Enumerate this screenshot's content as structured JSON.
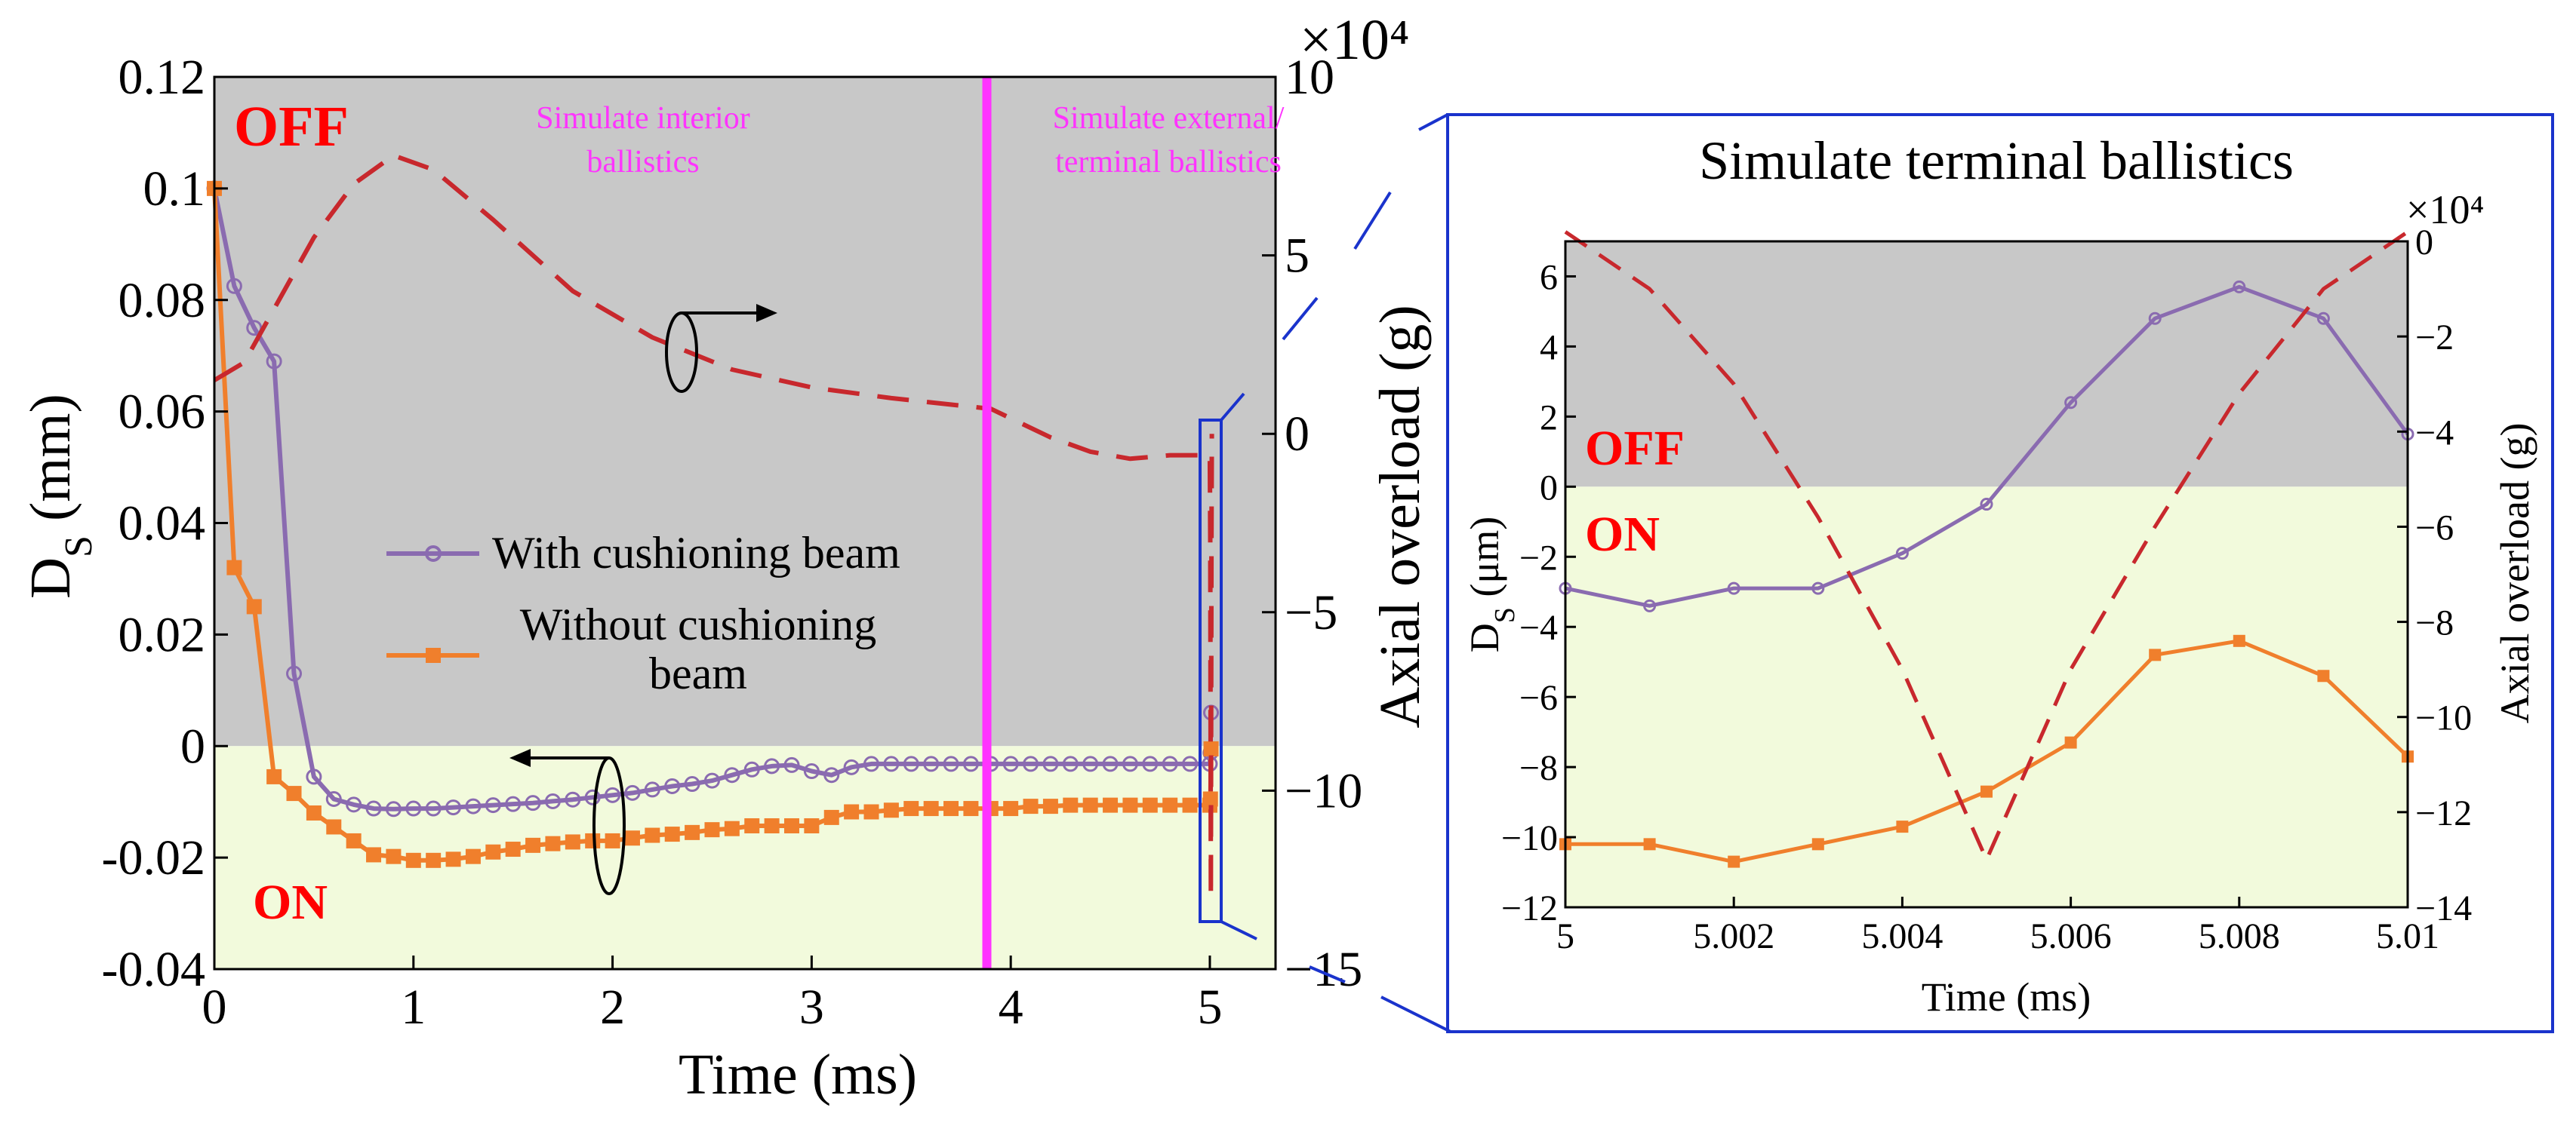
{
  "colors": {
    "off_region": "#c8c8c8",
    "on_region": "#f2fadc",
    "with_beam": "#8a6bb0",
    "without_beam": "#f07f2c",
    "overload": "#c8282d",
    "marker_line": "#ff33ff",
    "zone_text": "#ff0000",
    "inset_frame": "#1a33cc"
  },
  "chart_data": [
    {
      "type": "line",
      "name": "main",
      "xlabel": "Time (ms)",
      "ylabel_left": "D",
      "ylabel_left_sub": "S",
      "ylabel_left_unit": " (mm)",
      "ylabel_right": "Axial overload (g)",
      "right_exponent": "×10⁴",
      "xlim": [
        0,
        5.33
      ],
      "ylim_left": [
        -0.04,
        0.12
      ],
      "ylim_right": [
        -15,
        10
      ],
      "x_ticks": [
        "0",
        "1",
        "2",
        "3",
        "4",
        "5"
      ],
      "y_left_ticks": [
        "0.12",
        "0.1",
        "0.08",
        "0.06",
        "0.04",
        "0.02",
        "0",
        "-0.02",
        "-0.04"
      ],
      "y_right_ticks": [
        "10",
        "5",
        "0",
        "−5",
        "−10",
        "−15"
      ],
      "off_label": "OFF",
      "on_label": "ON",
      "note_interior": [
        "Simulate interior",
        "ballistics"
      ],
      "note_external": [
        "Simulate external/",
        "terminal ballistics"
      ],
      "divider_x": 3.88,
      "legend": {
        "with_label": "With cushioning beam",
        "without_label_line1": "Without cushioning",
        "without_label_line2": "beam"
      },
      "series": [
        {
          "name": "With cushioning beam",
          "axis": "left",
          "marker": "circle",
          "x": [
            0,
            0.1,
            0.2,
            0.3,
            0.4,
            0.5,
            0.6,
            0.7,
            0.8,
            0.9,
            1.0,
            1.1,
            1.2,
            1.3,
            1.4,
            1.5,
            1.6,
            1.7,
            1.8,
            1.9,
            2.0,
            2.1,
            2.2,
            2.3,
            2.4,
            2.5,
            2.6,
            2.7,
            2.8,
            2.9,
            3.0,
            3.1,
            3.2,
            3.3,
            3.4,
            3.5,
            3.6,
            3.7,
            3.8,
            3.9,
            4.0,
            4.1,
            4.2,
            4.3,
            4.4,
            4.5,
            4.6,
            4.7,
            4.8,
            4.9,
            5.0,
            5.003,
            5.006
          ],
          "y": [
            0.1,
            0.0825,
            0.075,
            0.069,
            0.013,
            -0.0055,
            -0.0095,
            -0.0105,
            -0.0112,
            -0.0113,
            -0.0112,
            -0.0112,
            -0.011,
            -0.0108,
            -0.0106,
            -0.0104,
            -0.0102,
            -0.0099,
            -0.0096,
            -0.0092,
            -0.0088,
            -0.0084,
            -0.0078,
            -0.0072,
            -0.0068,
            -0.0062,
            -0.0052,
            -0.0042,
            -0.0036,
            -0.0034,
            -0.0045,
            -0.0052,
            -0.0038,
            -0.0032,
            -0.0032,
            -0.0032,
            -0.0032,
            -0.0032,
            -0.0032,
            -0.0032,
            -0.0032,
            -0.0032,
            -0.0032,
            -0.0032,
            -0.0032,
            -0.0032,
            -0.0032,
            -0.0032,
            -0.0032,
            -0.0032,
            -0.0032,
            -0.0012,
            0.006
          ]
        },
        {
          "name": "Without cushioning beam",
          "axis": "left",
          "marker": "square",
          "x": [
            0,
            0.1,
            0.2,
            0.3,
            0.4,
            0.5,
            0.6,
            0.7,
            0.8,
            0.9,
            1.0,
            1.1,
            1.2,
            1.3,
            1.4,
            1.5,
            1.6,
            1.7,
            1.8,
            1.9,
            2.0,
            2.1,
            2.2,
            2.3,
            2.4,
            2.5,
            2.6,
            2.7,
            2.8,
            2.9,
            3.0,
            3.1,
            3.2,
            3.3,
            3.4,
            3.5,
            3.6,
            3.7,
            3.8,
            3.9,
            4.0,
            4.1,
            4.2,
            4.3,
            4.4,
            4.5,
            4.6,
            4.7,
            4.8,
            4.9,
            5.0,
            5.003,
            5.006
          ],
          "y": [
            0.1,
            0.032,
            0.025,
            -0.0055,
            -0.0085,
            -0.012,
            -0.0145,
            -0.017,
            -0.0195,
            -0.0198,
            -0.0205,
            -0.0205,
            -0.0203,
            -0.0198,
            -0.019,
            -0.0185,
            -0.0178,
            -0.0175,
            -0.0172,
            -0.017,
            -0.017,
            -0.0165,
            -0.016,
            -0.0158,
            -0.0155,
            -0.015,
            -0.0148,
            -0.0143,
            -0.0143,
            -0.0143,
            -0.0143,
            -0.0128,
            -0.0118,
            -0.0118,
            -0.0115,
            -0.0112,
            -0.0112,
            -0.0112,
            -0.0112,
            -0.0112,
            -0.0112,
            -0.0108,
            -0.0108,
            -0.0106,
            -0.0106,
            -0.0106,
            -0.0106,
            -0.0106,
            -0.0106,
            -0.0106,
            -0.0106,
            -0.0095,
            -0.0005
          ]
        },
        {
          "name": "Axial overload",
          "axis": "right",
          "style": "dashed",
          "x": [
            0,
            0.15,
            0.3,
            0.5,
            0.7,
            0.9,
            1.1,
            1.4,
            1.8,
            2.2,
            2.6,
            3.0,
            3.4,
            3.9,
            4.2,
            4.4,
            4.6,
            4.8,
            5.0,
            5.002,
            5.005,
            5.008,
            5.01
          ],
          "y": [
            1.5,
            2.0,
            3.5,
            5.5,
            7.0,
            7.8,
            7.4,
            6.0,
            4.0,
            2.7,
            1.8,
            1.3,
            1.0,
            0.7,
            -0.1,
            -0.5,
            -0.7,
            -0.6,
            -0.6,
            -3.0,
            -13.0,
            -3.0,
            0.0
          ]
        }
      ]
    },
    {
      "type": "line",
      "name": "inset",
      "title": "Simulate terminal ballistics",
      "xlabel": "Time (ms)",
      "ylabel_left": "D",
      "ylabel_left_sub": "S",
      "ylabel_left_unit": " (μm)",
      "ylabel_right": "Axial overload (g)",
      "right_exponent": "×10⁴",
      "xlim": [
        5,
        5.01
      ],
      "ylim_left": [
        -12,
        7
      ],
      "ylim_right": [
        -14,
        0
      ],
      "x_ticks": [
        "5",
        "5.002",
        "5.004",
        "5.006",
        "5.008",
        "5.01"
      ],
      "y_left_ticks": [
        "6",
        "4",
        "2",
        "0",
        "−2",
        "−4",
        "−6",
        "−8",
        "−10",
        "−12"
      ],
      "y_right_ticks": [
        "0",
        "−2",
        "−4",
        "−6",
        "−8",
        "−10",
        "−12",
        "−14"
      ],
      "off_label": "OFF",
      "on_label": "ON",
      "series": [
        {
          "name": "With cushioning beam",
          "axis": "left",
          "marker": "circle",
          "x": [
            5.0,
            5.001,
            5.002,
            5.003,
            5.004,
            5.005,
            5.006,
            5.007,
            5.008,
            5.009,
            5.01
          ],
          "y": [
            -2.9,
            -3.4,
            -2.9,
            -2.9,
            -1.9,
            -0.5,
            2.4,
            4.8,
            5.7,
            4.8,
            1.5
          ]
        },
        {
          "name": "Without cushioning beam",
          "axis": "left",
          "marker": "square",
          "x": [
            5.0,
            5.001,
            5.002,
            5.003,
            5.004,
            5.005,
            5.006,
            5.007,
            5.008,
            5.009,
            5.01
          ],
          "y": [
            -10.2,
            -10.2,
            -10.7,
            -10.2,
            -9.7,
            -8.7,
            -7.3,
            -4.8,
            -4.4,
            -5.4,
            -7.7
          ]
        },
        {
          "name": "Axial overload",
          "axis": "right",
          "style": "dashed",
          "x": [
            5.0,
            5.001,
            5.002,
            5.003,
            5.004,
            5.005,
            5.006,
            5.007,
            5.008,
            5.009,
            5.01
          ],
          "y": [
            0.2,
            -1.0,
            -3.0,
            -5.8,
            -9.0,
            -13.0,
            -9.0,
            -6.0,
            -3.2,
            -1.0,
            0.2
          ]
        }
      ]
    }
  ]
}
